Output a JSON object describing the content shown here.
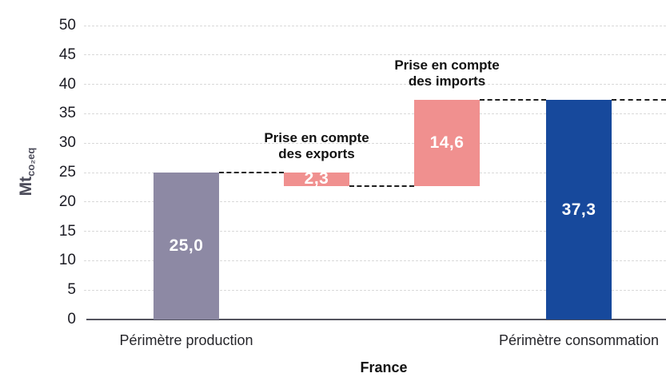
{
  "chart_data": {
    "type": "bar",
    "subtype": "waterfall",
    "title": "",
    "xlabel": "France",
    "ylabel_main": "Mt",
    "ylabel_sub": "co₂eq",
    "ylim": [
      0,
      50
    ],
    "ytick_step": 5,
    "ytick_labels": [
      "0",
      "5",
      "10",
      "15",
      "20",
      "25",
      "30",
      "35",
      "40",
      "45",
      "50"
    ],
    "grid": "horizontal-dashed",
    "legend": "none",
    "bars": [
      {
        "name": "production",
        "category": "Périmètre production",
        "base": 0,
        "top": 25.0,
        "value": 25.0,
        "value_label": "25,0",
        "color": "#8d89a4",
        "annotation": ""
      },
      {
        "name": "exports",
        "category": "",
        "base": 22.7,
        "top": 25.0,
        "value": -2.3,
        "value_label": "2,3",
        "color": "#f0908f",
        "annotation": "Prise en compte\ndes exports"
      },
      {
        "name": "imports",
        "category": "",
        "base": 22.7,
        "top": 37.3,
        "value": 14.6,
        "value_label": "14,6",
        "color": "#f0908f",
        "annotation": "Prise en compte\ndes imports"
      },
      {
        "name": "consommation",
        "category": "Périmètre consommation",
        "base": 0,
        "top": 37.3,
        "value": 37.3,
        "value_label": "37,3",
        "color": "#17499c"
      }
    ],
    "connectors": [
      {
        "level": 25.0,
        "from_bar": 0,
        "to_bar": 1
      },
      {
        "level": 22.7,
        "from_bar": 1,
        "to_bar": 2
      },
      {
        "level": 37.3,
        "from_bar": 2,
        "to_bar": 3
      },
      {
        "level": 37.3,
        "from_bar": 3,
        "to_bar": "right-edge"
      }
    ],
    "colors": {
      "production_bar": "#8d89a4",
      "flow_bar": "#f0908f",
      "consumption_bar": "#17499c",
      "connector": "#1f1f1f",
      "gridline": "#d9d9d9",
      "axis_line": "#53535e",
      "tick_text": "#1c1c24",
      "value_text": "#ffffff",
      "ylabel_text": "#4d4d5b"
    }
  }
}
